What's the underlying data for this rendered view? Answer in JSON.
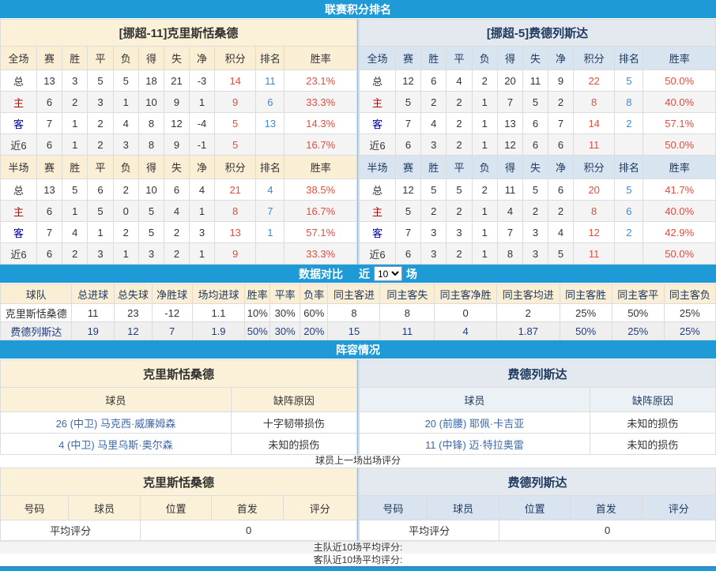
{
  "colors": {
    "accent_blue": "#1E9BD7",
    "score_red": "#E04E3F",
    "rank_blue": "#3B8AD8",
    "navy_text": "#223C7E",
    "home_label_red": "#C00000",
    "away_label_navy": "#000099",
    "home_cream": "#FAEFD5",
    "away_band_blue": "#E3E9EF",
    "away_header_blue": "#D8E4F0",
    "link_blue": "#3E68A8"
  },
  "sections": {
    "standings_title": "联赛积分排名",
    "compare_title": "数据对比",
    "near_label": "近",
    "games_count": "10",
    "games_label": "场",
    "lineup_title": "阵容情况"
  },
  "standings": {
    "columns_full": [
      "全场",
      "赛",
      "胜",
      "平",
      "负",
      "得",
      "失",
      "净",
      "积分",
      "排名",
      "胜率"
    ],
    "columns_half": [
      "半场",
      "赛",
      "胜",
      "平",
      "负",
      "得",
      "失",
      "净",
      "积分",
      "排名",
      "胜率"
    ],
    "teams": [
      {
        "title": "[挪超-11]克里斯恬桑德",
        "full": [
          {
            "label": "总",
            "cells": [
              "13",
              "3",
              "5",
              "5",
              "18",
              "21",
              "-3",
              "14",
              "11",
              "23.1%"
            ]
          },
          {
            "label": "主",
            "cells": [
              "6",
              "2",
              "3",
              "1",
              "10",
              "9",
              "1",
              "9",
              "6",
              "33.3%"
            ]
          },
          {
            "label": "客",
            "cells": [
              "7",
              "1",
              "2",
              "4",
              "8",
              "12",
              "-4",
              "5",
              "13",
              "14.3%"
            ]
          },
          {
            "label": "近6",
            "cells": [
              "6",
              "1",
              "2",
              "3",
              "8",
              "9",
              "-1",
              "5",
              "",
              "16.7%"
            ]
          }
        ],
        "half": [
          {
            "label": "总",
            "cells": [
              "13",
              "5",
              "6",
              "2",
              "10",
              "6",
              "4",
              "21",
              "4",
              "38.5%"
            ]
          },
          {
            "label": "主",
            "cells": [
              "6",
              "1",
              "5",
              "0",
              "5",
              "4",
              "1",
              "8",
              "7",
              "16.7%"
            ]
          },
          {
            "label": "客",
            "cells": [
              "7",
              "4",
              "1",
              "2",
              "5",
              "2",
              "3",
              "13",
              "1",
              "57.1%"
            ]
          },
          {
            "label": "近6",
            "cells": [
              "6",
              "2",
              "3",
              "1",
              "3",
              "2",
              "1",
              "9",
              "",
              "33.3%"
            ]
          }
        ]
      },
      {
        "title": "[挪超-5]费德列斯达",
        "full": [
          {
            "label": "总",
            "cells": [
              "12",
              "6",
              "4",
              "2",
              "20",
              "11",
              "9",
              "22",
              "5",
              "50.0%"
            ]
          },
          {
            "label": "主",
            "cells": [
              "5",
              "2",
              "2",
              "1",
              "7",
              "5",
              "2",
              "8",
              "8",
              "40.0%"
            ]
          },
          {
            "label": "客",
            "cells": [
              "7",
              "4",
              "2",
              "1",
              "13",
              "6",
              "7",
              "14",
              "2",
              "57.1%"
            ]
          },
          {
            "label": "近6",
            "cells": [
              "6",
              "3",
              "2",
              "1",
              "12",
              "6",
              "6",
              "11",
              "",
              "50.0%"
            ]
          }
        ],
        "half": [
          {
            "label": "总",
            "cells": [
              "12",
              "5",
              "5",
              "2",
              "11",
              "5",
              "6",
              "20",
              "5",
              "41.7%"
            ]
          },
          {
            "label": "主",
            "cells": [
              "5",
              "2",
              "2",
              "1",
              "4",
              "2",
              "2",
              "8",
              "6",
              "40.0%"
            ]
          },
          {
            "label": "客",
            "cells": [
              "7",
              "3",
              "3",
              "1",
              "7",
              "3",
              "4",
              "12",
              "2",
              "42.9%"
            ]
          },
          {
            "label": "近6",
            "cells": [
              "6",
              "3",
              "2",
              "1",
              "8",
              "3",
              "5",
              "11",
              "",
              "50.0%"
            ]
          }
        ]
      }
    ]
  },
  "comparison": {
    "columns": [
      "球队",
      "总进球",
      "总失球",
      "净胜球",
      "场均进球",
      "胜率",
      "平率",
      "负率",
      "同主客进",
      "同主客失",
      "同主客净胜",
      "同主客均进",
      "同主客胜",
      "同主客平",
      "同主客负"
    ],
    "rows": [
      {
        "team": "克里斯恬桑德",
        "values": [
          "11",
          "23",
          "-12",
          "1.1",
          "10%",
          "30%",
          "60%",
          "8",
          "8",
          "0",
          "2",
          "25%",
          "50%",
          "25%"
        ]
      },
      {
        "team": "费德列斯达",
        "values": [
          "19",
          "12",
          "7",
          "1.9",
          "50%",
          "30%",
          "20%",
          "15",
          "11",
          "4",
          "1.87",
          "50%",
          "25%",
          "25%"
        ]
      }
    ]
  },
  "lineup": {
    "tables": [
      {
        "team": "克里斯恬桑德",
        "columns": [
          "球员",
          "缺阵原因"
        ],
        "rows": [
          {
            "player": "26 (中卫) 马克西·威廉姆森",
            "reason": "十字韧带损伤"
          },
          {
            "player": "4 (中卫) 马里乌斯·奥尔森",
            "reason": "未知的损伤"
          }
        ]
      },
      {
        "team": "费德列斯达",
        "columns": [
          "球员",
          "缺阵原因"
        ],
        "rows": [
          {
            "player": "20 (前腰) 耶佩·卡吉亚",
            "reason": "未知的损伤"
          },
          {
            "player": "11 (中锋) 迈·特拉奥雷",
            "reason": "未知的损伤"
          }
        ]
      }
    ]
  },
  "ratings": {
    "caption": "球员上一场出场评分",
    "tables": [
      {
        "team": "克里斯恬桑德",
        "columns": [
          "号码",
          "球员",
          "位置",
          "首发",
          "评分"
        ],
        "avg_label": "平均评分",
        "avg_value": "0"
      },
      {
        "team": "费德列斯达",
        "columns": [
          "号码",
          "球员",
          "位置",
          "首发",
          "评分"
        ],
        "avg_label": "平均评分",
        "avg_value": "0"
      }
    ]
  },
  "footer": {
    "home_line": "主队近10场平均评分:",
    "away_line": "客队近10场平均评分:"
  }
}
